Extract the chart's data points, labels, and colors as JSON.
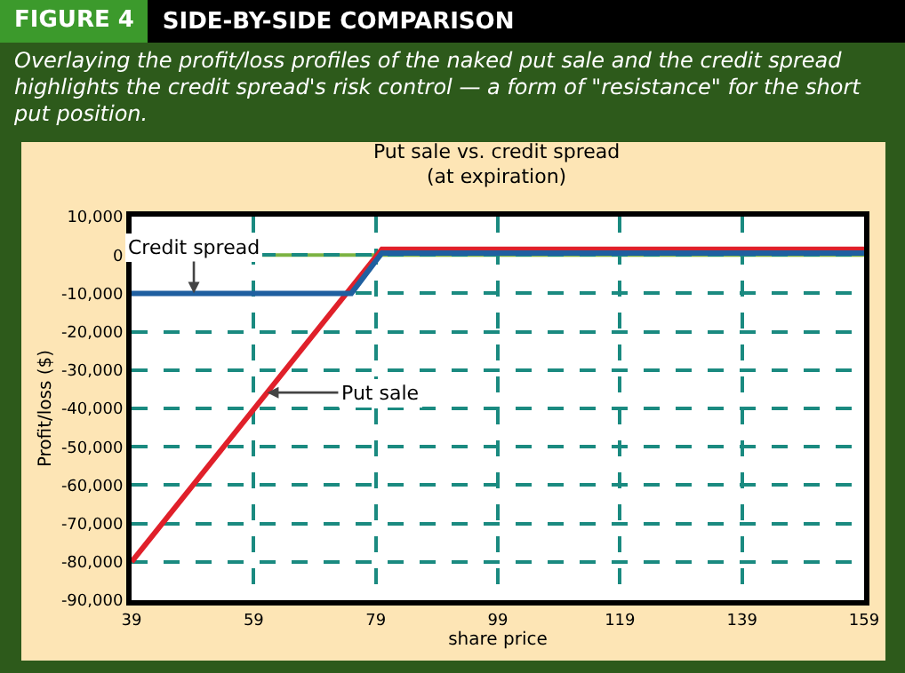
{
  "chart_data": {
    "type": "line",
    "title": "Put sale vs. credit spread\n(at expiration)",
    "subtitle": "Overlaying the profit/loss profiles of the naked put sale and the credit spread highlights the credit spread's risk control — a form of \"resistance\" for the short put position.",
    "annotations": [
      "FIGURE 4",
      "SIDE-BY-SIDE COMPARISON"
    ],
    "xlabel": "share price",
    "ylabel": "Profit/loss ($)",
    "series": [
      {
        "name": "Put sale",
        "color": "#e0202a",
        "x": [
          39,
          80,
          159
        ],
        "values": [
          -80000,
          1500,
          1500
        ]
      },
      {
        "name": "Credit spread",
        "color": "#1f5fa0",
        "x": [
          39,
          75,
          80,
          159
        ],
        "values": [
          -10000,
          -10000,
          500,
          500
        ]
      }
    ],
    "ref_lines": [
      {
        "axis": "y",
        "value": 0,
        "color": "#7cb342"
      }
    ],
    "xlim": [
      39,
      159
    ],
    "xticks": [
      39,
      59,
      79,
      99,
      119,
      139,
      159
    ],
    "ylim": [
      -90000,
      10000
    ],
    "yticks": [
      {
        "value": 10000,
        "label": "10,000"
      },
      0,
      {
        "value": -10000,
        "label": "-10,000"
      },
      {
        "value": -20000,
        "label": "-20,000"
      },
      {
        "value": -30000,
        "label": "-30,000"
      },
      {
        "value": -40000,
        "label": "-40,000"
      },
      {
        "value": -50000,
        "label": "-50,000"
      },
      {
        "value": -60000,
        "label": "-60,000"
      },
      {
        "value": -70000,
        "label": "-70,000"
      },
      {
        "value": -80000,
        "label": "-80,000"
      },
      {
        "value": -90000,
        "label": "-90,000"
      }
    ],
    "grid": true,
    "legend": false,
    "marker": "none",
    "line_style": "solid"
  }
}
